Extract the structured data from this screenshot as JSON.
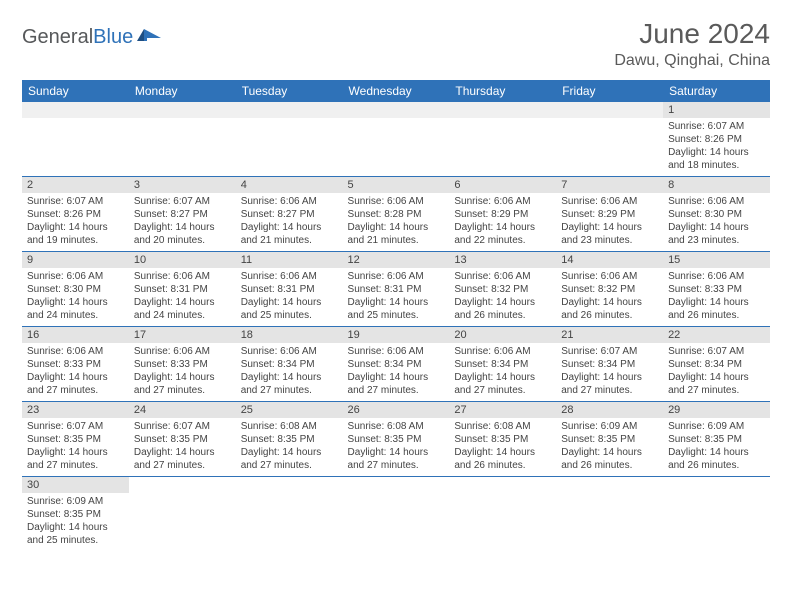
{
  "logo": {
    "text1": "General",
    "text2": "Blue"
  },
  "title": {
    "month": "June 2024",
    "location": "Dawu, Qinghai, China"
  },
  "header_bg": "#2f72b8",
  "daynum_bg": "#e4e4e4",
  "weekdays": [
    "Sunday",
    "Monday",
    "Tuesday",
    "Wednesday",
    "Thursday",
    "Friday",
    "Saturday"
  ],
  "weeks": [
    [
      {
        "day": "",
        "sunrise": "",
        "sunset": "",
        "daylight": ""
      },
      {
        "day": "",
        "sunrise": "",
        "sunset": "",
        "daylight": ""
      },
      {
        "day": "",
        "sunrise": "",
        "sunset": "",
        "daylight": ""
      },
      {
        "day": "",
        "sunrise": "",
        "sunset": "",
        "daylight": ""
      },
      {
        "day": "",
        "sunrise": "",
        "sunset": "",
        "daylight": ""
      },
      {
        "day": "",
        "sunrise": "",
        "sunset": "",
        "daylight": ""
      },
      {
        "day": "1",
        "sunrise": "Sunrise: 6:07 AM",
        "sunset": "Sunset: 8:26 PM",
        "daylight": "Daylight: 14 hours and 18 minutes."
      }
    ],
    [
      {
        "day": "2",
        "sunrise": "Sunrise: 6:07 AM",
        "sunset": "Sunset: 8:26 PM",
        "daylight": "Daylight: 14 hours and 19 minutes."
      },
      {
        "day": "3",
        "sunrise": "Sunrise: 6:07 AM",
        "sunset": "Sunset: 8:27 PM",
        "daylight": "Daylight: 14 hours and 20 minutes."
      },
      {
        "day": "4",
        "sunrise": "Sunrise: 6:06 AM",
        "sunset": "Sunset: 8:27 PM",
        "daylight": "Daylight: 14 hours and 21 minutes."
      },
      {
        "day": "5",
        "sunrise": "Sunrise: 6:06 AM",
        "sunset": "Sunset: 8:28 PM",
        "daylight": "Daylight: 14 hours and 21 minutes."
      },
      {
        "day": "6",
        "sunrise": "Sunrise: 6:06 AM",
        "sunset": "Sunset: 8:29 PM",
        "daylight": "Daylight: 14 hours and 22 minutes."
      },
      {
        "day": "7",
        "sunrise": "Sunrise: 6:06 AM",
        "sunset": "Sunset: 8:29 PM",
        "daylight": "Daylight: 14 hours and 23 minutes."
      },
      {
        "day": "8",
        "sunrise": "Sunrise: 6:06 AM",
        "sunset": "Sunset: 8:30 PM",
        "daylight": "Daylight: 14 hours and 23 minutes."
      }
    ],
    [
      {
        "day": "9",
        "sunrise": "Sunrise: 6:06 AM",
        "sunset": "Sunset: 8:30 PM",
        "daylight": "Daylight: 14 hours and 24 minutes."
      },
      {
        "day": "10",
        "sunrise": "Sunrise: 6:06 AM",
        "sunset": "Sunset: 8:31 PM",
        "daylight": "Daylight: 14 hours and 24 minutes."
      },
      {
        "day": "11",
        "sunrise": "Sunrise: 6:06 AM",
        "sunset": "Sunset: 8:31 PM",
        "daylight": "Daylight: 14 hours and 25 minutes."
      },
      {
        "day": "12",
        "sunrise": "Sunrise: 6:06 AM",
        "sunset": "Sunset: 8:31 PM",
        "daylight": "Daylight: 14 hours and 25 minutes."
      },
      {
        "day": "13",
        "sunrise": "Sunrise: 6:06 AM",
        "sunset": "Sunset: 8:32 PM",
        "daylight": "Daylight: 14 hours and 26 minutes."
      },
      {
        "day": "14",
        "sunrise": "Sunrise: 6:06 AM",
        "sunset": "Sunset: 8:32 PM",
        "daylight": "Daylight: 14 hours and 26 minutes."
      },
      {
        "day": "15",
        "sunrise": "Sunrise: 6:06 AM",
        "sunset": "Sunset: 8:33 PM",
        "daylight": "Daylight: 14 hours and 26 minutes."
      }
    ],
    [
      {
        "day": "16",
        "sunrise": "Sunrise: 6:06 AM",
        "sunset": "Sunset: 8:33 PM",
        "daylight": "Daylight: 14 hours and 27 minutes."
      },
      {
        "day": "17",
        "sunrise": "Sunrise: 6:06 AM",
        "sunset": "Sunset: 8:33 PM",
        "daylight": "Daylight: 14 hours and 27 minutes."
      },
      {
        "day": "18",
        "sunrise": "Sunrise: 6:06 AM",
        "sunset": "Sunset: 8:34 PM",
        "daylight": "Daylight: 14 hours and 27 minutes."
      },
      {
        "day": "19",
        "sunrise": "Sunrise: 6:06 AM",
        "sunset": "Sunset: 8:34 PM",
        "daylight": "Daylight: 14 hours and 27 minutes."
      },
      {
        "day": "20",
        "sunrise": "Sunrise: 6:06 AM",
        "sunset": "Sunset: 8:34 PM",
        "daylight": "Daylight: 14 hours and 27 minutes."
      },
      {
        "day": "21",
        "sunrise": "Sunrise: 6:07 AM",
        "sunset": "Sunset: 8:34 PM",
        "daylight": "Daylight: 14 hours and 27 minutes."
      },
      {
        "day": "22",
        "sunrise": "Sunrise: 6:07 AM",
        "sunset": "Sunset: 8:34 PM",
        "daylight": "Daylight: 14 hours and 27 minutes."
      }
    ],
    [
      {
        "day": "23",
        "sunrise": "Sunrise: 6:07 AM",
        "sunset": "Sunset: 8:35 PM",
        "daylight": "Daylight: 14 hours and 27 minutes."
      },
      {
        "day": "24",
        "sunrise": "Sunrise: 6:07 AM",
        "sunset": "Sunset: 8:35 PM",
        "daylight": "Daylight: 14 hours and 27 minutes."
      },
      {
        "day": "25",
        "sunrise": "Sunrise: 6:08 AM",
        "sunset": "Sunset: 8:35 PM",
        "daylight": "Daylight: 14 hours and 27 minutes."
      },
      {
        "day": "26",
        "sunrise": "Sunrise: 6:08 AM",
        "sunset": "Sunset: 8:35 PM",
        "daylight": "Daylight: 14 hours and 27 minutes."
      },
      {
        "day": "27",
        "sunrise": "Sunrise: 6:08 AM",
        "sunset": "Sunset: 8:35 PM",
        "daylight": "Daylight: 14 hours and 26 minutes."
      },
      {
        "day": "28",
        "sunrise": "Sunrise: 6:09 AM",
        "sunset": "Sunset: 8:35 PM",
        "daylight": "Daylight: 14 hours and 26 minutes."
      },
      {
        "day": "29",
        "sunrise": "Sunrise: 6:09 AM",
        "sunset": "Sunset: 8:35 PM",
        "daylight": "Daylight: 14 hours and 26 minutes."
      }
    ],
    [
      {
        "day": "30",
        "sunrise": "Sunrise: 6:09 AM",
        "sunset": "Sunset: 8:35 PM",
        "daylight": "Daylight: 14 hours and 25 minutes."
      },
      {
        "day": "",
        "sunrise": "",
        "sunset": "",
        "daylight": ""
      },
      {
        "day": "",
        "sunrise": "",
        "sunset": "",
        "daylight": ""
      },
      {
        "day": "",
        "sunrise": "",
        "sunset": "",
        "daylight": ""
      },
      {
        "day": "",
        "sunrise": "",
        "sunset": "",
        "daylight": ""
      },
      {
        "day": "",
        "sunrise": "",
        "sunset": "",
        "daylight": ""
      },
      {
        "day": "",
        "sunrise": "",
        "sunset": "",
        "daylight": ""
      }
    ]
  ]
}
